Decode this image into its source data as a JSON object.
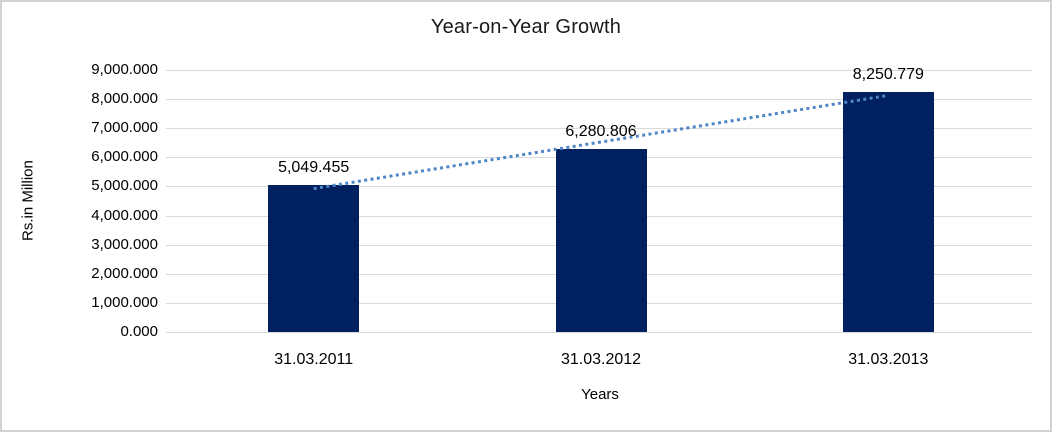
{
  "chart_data": {
    "type": "bar",
    "title": "Year-on-Year Growth",
    "xlabel": "Years",
    "ylabel": "Rs.in Million",
    "categories": [
      "31.03.2011",
      "31.03.2012",
      "31.03.2013"
    ],
    "values": [
      5049.455,
      6280.806,
      8250.779
    ],
    "data_labels": [
      "5,049.455",
      "6,280.806",
      "8,250.779"
    ],
    "y_ticks": [
      "9,000.000",
      "8,000.000",
      "7,000.000",
      "6,000.000",
      "5,000.000",
      "4,000.000",
      "3,000.000",
      "2,000.000",
      "1,000.000",
      "0.000"
    ],
    "ylim": [
      0,
      9000
    ],
    "ytick_step": 1000,
    "grid": true,
    "legend": false,
    "bar_color": "#002060",
    "gridline_color": "#d9d9d9",
    "frame_color": "#d2d2d2",
    "text_color": "#000000",
    "trendline": {
      "type": "linear",
      "style": "dotted",
      "color": "#4e86c6"
    }
  }
}
